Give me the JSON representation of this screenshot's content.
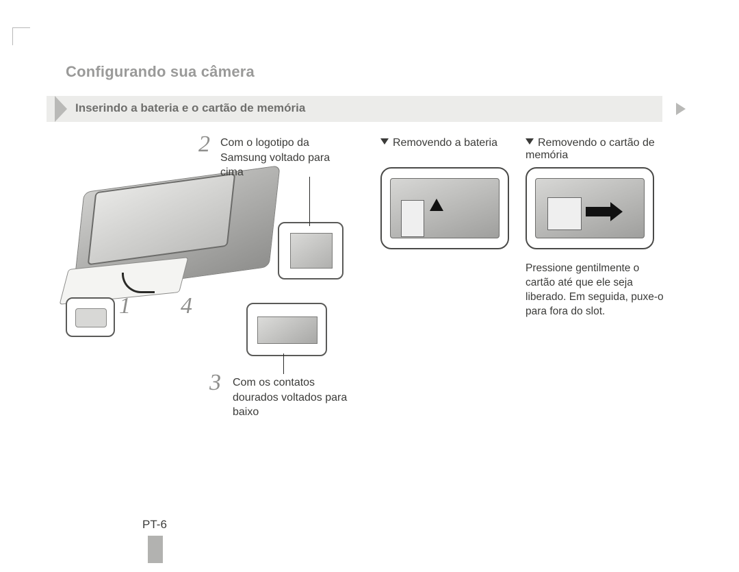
{
  "header": {
    "title": "Configurando sua câmera"
  },
  "ribbon": {
    "text": "Inserindo a bateria e o cartão de memória"
  },
  "steps": {
    "n1": "1",
    "n2": "2",
    "n3": "3",
    "n4": "4",
    "text2": "Com o logotipo da Samsung voltado para cima",
    "text3": "Com os contatos dourados voltados para baixo"
  },
  "right": {
    "sub_a": "Removendo a bateria",
    "sub_b": "Removendo o cartão de memória",
    "note": "Pressione gentilmente o cartão até que ele seja liberado. Em seguida, puxe-o para fora do slot."
  },
  "footer": {
    "page": "PT-6"
  },
  "colors": {
    "title_gray": "#9a9a99",
    "ribbon_bg": "#ececea",
    "ribbon_chevron": "#b9b9b7",
    "text": "#3b3b39",
    "big_num": "#8e8e8c",
    "panel_border": "#4a4a48",
    "tab": "#b2b2b0"
  }
}
